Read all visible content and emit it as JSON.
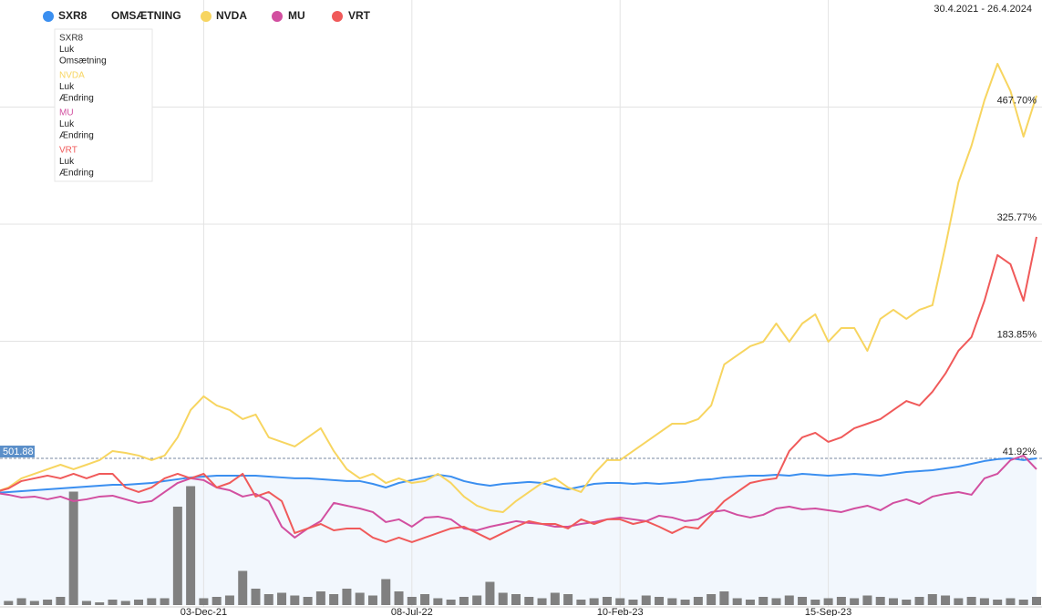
{
  "chart_data": {
    "type": "line",
    "date_range": "30.4.2021 - 26.4.2024",
    "price_label": "501.88",
    "categories": [
      null,
      null,
      null,
      null,
      null,
      null,
      null,
      null,
      null,
      null,
      null,
      null,
      null,
      null,
      null,
      null,
      "03-Dec-21",
      null,
      null,
      null,
      null,
      null,
      null,
      null,
      null,
      null,
      null,
      null,
      null,
      null,
      null,
      null,
      "08-Jul-22",
      null,
      null,
      null,
      null,
      null,
      null,
      null,
      null,
      null,
      null,
      null,
      null,
      null,
      null,
      null,
      "10-Feb-23",
      null,
      null,
      null,
      null,
      null,
      null,
      null,
      null,
      null,
      null,
      null,
      null,
      null,
      null,
      null,
      "15-Sep-23",
      null,
      null,
      null,
      null,
      null,
      null,
      null,
      null,
      null,
      null,
      null,
      null,
      null,
      null,
      null,
      null
    ],
    "ylim": [
      -135.9,
      597.5
    ],
    "yticks": [
      {
        "value": 41.92,
        "label": "41.92%"
      },
      {
        "value": 183.85,
        "label": "183.85%"
      },
      {
        "value": 325.77,
        "label": "325.77%"
      },
      {
        "value": 467.7,
        "label": "467.70%"
      }
    ],
    "y2lim": [
      0,
      100
    ],
    "grid": true,
    "series": [
      {
        "name": "SXR8",
        "color": "#3b8ff0",
        "area": true,
        "values": [
          0,
          1.1,
          2.2,
          3.3,
          4.4,
          5.5,
          6.6,
          7.7,
          8.8,
          9.9,
          9.9,
          11,
          12.1,
          14.4,
          16.6,
          18.8,
          19.9,
          21,
          21,
          21,
          21,
          19.9,
          18.8,
          17.7,
          17.7,
          16.6,
          15.5,
          14.4,
          14.4,
          11,
          6.6,
          12.1,
          15.5,
          18.8,
          22.1,
          19.9,
          14.4,
          11,
          8.8,
          11,
          12.1,
          13.3,
          12.1,
          7.7,
          4.4,
          7.7,
          11,
          12.1,
          12.1,
          11,
          12.1,
          11,
          12.1,
          13.3,
          15.5,
          16.6,
          18.8,
          19.9,
          21,
          21,
          22.1,
          21,
          23.2,
          22.1,
          21,
          22.1,
          23.2,
          22.1,
          21,
          23.2,
          25.4,
          26.5,
          27.6,
          29.8,
          32,
          35.3,
          38.7,
          40.9,
          42,
          39.8,
          41.92
        ]
      },
      {
        "name": "OMSÆTNING",
        "color": "#808080",
        "type": "bar",
        "axis": "y2",
        "values": [
          4,
          3,
          5,
          3,
          4,
          6,
          83,
          3,
          2,
          4,
          3,
          4,
          5,
          5,
          72,
          87,
          5,
          6,
          7,
          25,
          12,
          8,
          9,
          7,
          6,
          10,
          8,
          12,
          9,
          7,
          19,
          10,
          6,
          8,
          5,
          4,
          6,
          7,
          17,
          9,
          8,
          6,
          5,
          9,
          8,
          4,
          5,
          6,
          5,
          4,
          7,
          6,
          5,
          4,
          6,
          8,
          10,
          5,
          4,
          6,
          5,
          7,
          6,
          4,
          5,
          6,
          5,
          7,
          6,
          5,
          4,
          6,
          8,
          7,
          5,
          6,
          5,
          4,
          5,
          4,
          6
        ]
      },
      {
        "name": "NVDA",
        "color": "#f7d560",
        "values": [
          1.1,
          6.6,
          17.7,
          23.2,
          28.7,
          34.2,
          28.7,
          34.2,
          39.8,
          50.8,
          48.6,
          45.3,
          39.8,
          45.3,
          67.4,
          100.5,
          117.1,
          106,
          100.5,
          89.5,
          95,
          67.4,
          61.9,
          56.3,
          67.4,
          78.4,
          50.8,
          28.7,
          17.7,
          23.2,
          12.1,
          17.7,
          12.1,
          14.4,
          23.2,
          12.1,
          -4.4,
          -15.5,
          -21,
          -23.2,
          -9.9,
          1.1,
          12.1,
          17.7,
          6.6,
          1.1,
          23.2,
          39.8,
          39.8,
          50.8,
          61.9,
          72.9,
          83.9,
          83.9,
          89.5,
          106,
          155.7,
          166.8,
          177.8,
          183.3,
          205.4,
          183.3,
          205.4,
          216.5,
          183.3,
          199.9,
          199.9,
          172.3,
          211,
          222,
          211,
          222,
          227.5,
          299.3,
          376.6,
          420.8,
          476,
          520.2,
          487.1,
          431.9,
          481.6
        ]
      },
      {
        "name": "MU",
        "color": "#d24fa0",
        "values": [
          0,
          -2.2,
          -5.5,
          -4.4,
          -7.7,
          -4.4,
          -9.9,
          -7.7,
          -4.4,
          -3.3,
          -7.7,
          -12.1,
          -9.9,
          1.1,
          12.1,
          17.7,
          15.5,
          6.6,
          3.3,
          -4.4,
          -1.1,
          -9.9,
          -40.9,
          -54.1,
          -43.1,
          -34.2,
          -12.1,
          -15.5,
          -18.8,
          -23.2,
          -35.3,
          -32,
          -40.9,
          -29.8,
          -28.7,
          -32,
          -43.1,
          -45.3,
          -40.9,
          -37.6,
          -34.2,
          -36.4,
          -37.6,
          -40.9,
          -40.9,
          -37.6,
          -35.3,
          -32,
          -29.8,
          -32,
          -34.2,
          -27.6,
          -29.8,
          -34.2,
          -32,
          -23.2,
          -21,
          -26.5,
          -29.8,
          -26.5,
          -18.8,
          -16.6,
          -19.9,
          -18.8,
          -21,
          -23.2,
          -18.8,
          -15.5,
          -21,
          -12.1,
          -7.7,
          -13.3,
          -4.4,
          -1.1,
          1.1,
          -2.2,
          17.7,
          23.2,
          39.8,
          45.3,
          28.7
        ]
      },
      {
        "name": "VRT",
        "color": "#f05a5a",
        "values": [
          1.1,
          5.5,
          14.4,
          17.7,
          21,
          17.7,
          23.2,
          17.7,
          23.2,
          23.2,
          6.6,
          1.1,
          6.6,
          17.7,
          23.2,
          17.7,
          23.2,
          6.6,
          12.1,
          23.2,
          -4.4,
          1.1,
          -9.9,
          -48.6,
          -43.1,
          -37.6,
          -45.3,
          -43.1,
          -43.1,
          -54.1,
          -59.6,
          -54.1,
          -59.6,
          -54.1,
          -48.6,
          -43.1,
          -40.9,
          -48.6,
          -56.3,
          -48.6,
          -40.9,
          -34.2,
          -37.6,
          -37.6,
          -43.1,
          -32,
          -37.6,
          -32,
          -32,
          -37.6,
          -34.2,
          -40.9,
          -48.6,
          -40.9,
          -43.1,
          -26.5,
          -9.9,
          1.1,
          12.1,
          15.5,
          17.7,
          50.8,
          67.4,
          72.9,
          61.9,
          67.4,
          78.4,
          83.9,
          89.5,
          100.5,
          111.5,
          106,
          122.6,
          144.7,
          172.3,
          188.9,
          233,
          288.3,
          277.2,
          233,
          310.4
        ]
      }
    ],
    "tooltip": [
      [
        "Luk",
        "Omsætning"
      ],
      [
        "Luk",
        "Ændring"
      ],
      [
        "Luk",
        "Ændring"
      ],
      [
        "Luk",
        "Ændring"
      ]
    ]
  }
}
